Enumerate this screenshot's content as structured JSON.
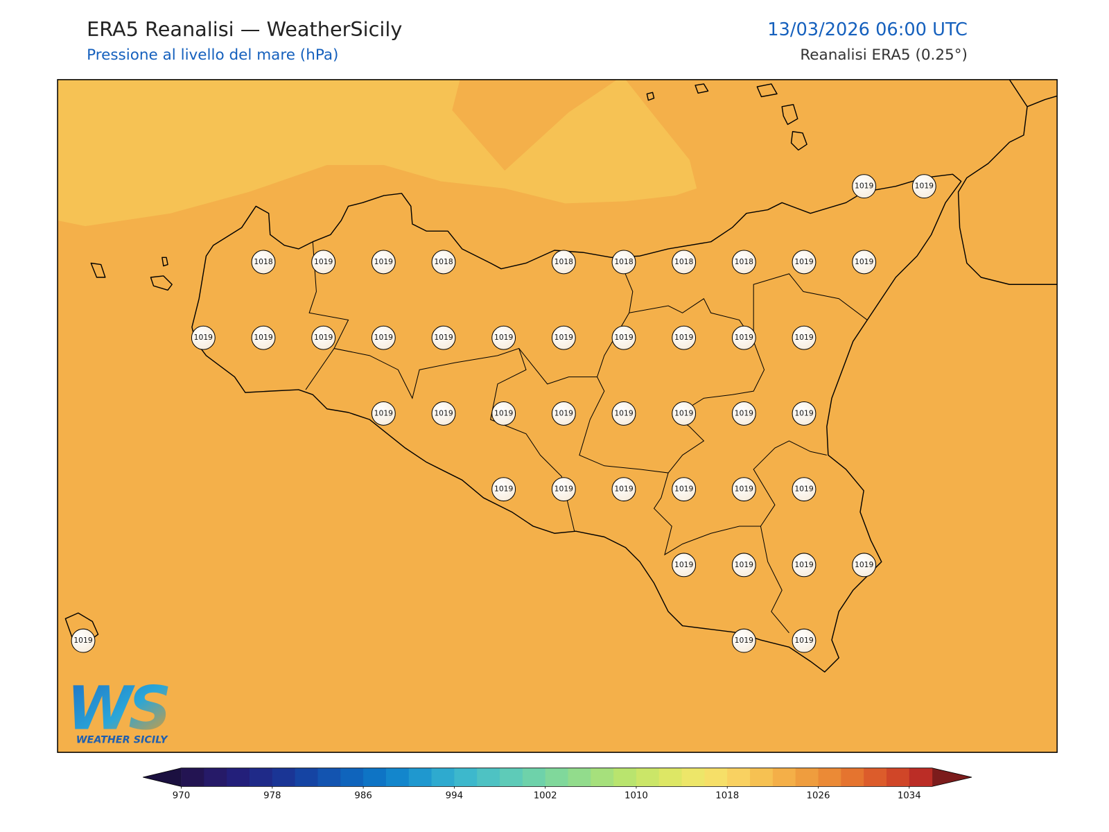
{
  "header": {
    "title": "ERA5 Reanalisi — WeatherSicily",
    "subtitle": "Pressione al livello del mare (hPa)",
    "datetime": "13/03/2026 06:00 UTC",
    "source": "Reanalisi ERA5 (0.25°)"
  },
  "map": {
    "fill": "#f4b04a",
    "fill_light": "#f6c254"
  },
  "stations": {
    "rows": [
      [
        null,
        null,
        null,
        null,
        null,
        null,
        null,
        null,
        null,
        null,
        null,
        null,
        null,
        1019,
        1019
      ],
      [
        null,
        null,
        null,
        1018,
        1019,
        1019,
        1018,
        null,
        1018,
        1018,
        1018,
        1018,
        1019,
        1019,
        null
      ],
      [
        null,
        null,
        1019,
        1019,
        1019,
        1019,
        1019,
        1019,
        1019,
        1019,
        1019,
        1019,
        1019,
        null,
        null
      ],
      [
        null,
        null,
        null,
        null,
        null,
        1019,
        1019,
        1019,
        1019,
        1019,
        1019,
        1019,
        1019,
        null,
        null
      ],
      [
        null,
        null,
        null,
        null,
        null,
        null,
        null,
        1019,
        1019,
        1019,
        1019,
        1019,
        1019,
        null,
        null
      ],
      [
        null,
        null,
        null,
        null,
        null,
        null,
        null,
        null,
        null,
        null,
        1019,
        1019,
        1019,
        1019,
        null
      ],
      [
        1019,
        null,
        null,
        null,
        null,
        null,
        null,
        null,
        null,
        null,
        null,
        1019,
        1019,
        null,
        null
      ]
    ]
  },
  "colorbar": {
    "lim": [
      970,
      1036
    ],
    "ticks": [
      970,
      978,
      986,
      994,
      1002,
      1010,
      1018,
      1026,
      1034
    ],
    "colors": [
      "#231452",
      "#261a68",
      "#231f7a",
      "#1f2a88",
      "#1a3595",
      "#1544a3",
      "#1354b0",
      "#0f64bc",
      "#0e74c5",
      "#1386cc",
      "#1f98cf",
      "#2eaacf",
      "#3db8cc",
      "#4ec2c3",
      "#5ecbb8",
      "#6ed2aa",
      "#80d89b",
      "#92dc8c",
      "#a6e07c",
      "#b9e46e",
      "#cbe668",
      "#dde765",
      "#ede669",
      "#f6df68",
      "#f9d161",
      "#f6c152",
      "#f4af48",
      "#ef9d3e",
      "#eb8a36",
      "#e5742f",
      "#dc5c2b",
      "#d04628",
      "#bb2d26"
    ],
    "under_color": "#1b1040",
    "over_color": "#7c1c1c"
  },
  "logo": {
    "letters": "WS",
    "name": "WEATHER SICILY"
  }
}
